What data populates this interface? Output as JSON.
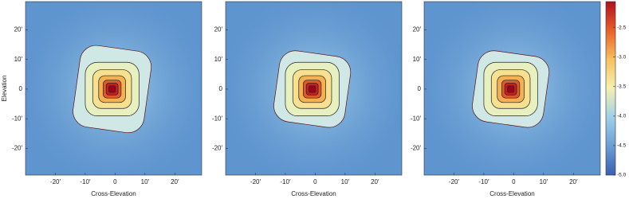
{
  "chart_data": [
    {
      "type": "heatmap",
      "xlabel": "Cross-Elevation",
      "ylabel": "Elevation",
      "xlim": [
        -30,
        29
      ],
      "ylim": [
        -29,
        29.5
      ],
      "xticks": [
        {
          "value": -20,
          "label": "-20′"
        },
        {
          "value": -10,
          "label": "-10′"
        },
        0,
        {
          "value": 10,
          "label": "10′"
        },
        {
          "value": 20,
          "label": "20′"
        }
      ],
      "yticks": [
        {
          "value": 20,
          "label": "20′"
        },
        {
          "value": 10,
          "label": "10′"
        },
        0,
        {
          "value": -10,
          "label": "-10′"
        },
        {
          "value": -20,
          "label": "-20′"
        }
      ]
    },
    {
      "type": "heatmap",
      "xlabel": "Cross-Elevation",
      "xlim": [
        -30,
        29
      ],
      "ylim": [
        -29,
        29.5
      ],
      "xticks": [
        {
          "value": -20,
          "label": "-20′"
        },
        {
          "value": -10,
          "label": "-10′"
        },
        0,
        {
          "value": 10,
          "label": "10′"
        },
        {
          "value": 20,
          "label": "20′"
        }
      ],
      "yticks": [
        {
          "value": 20,
          "label": "20′"
        },
        {
          "value": 10,
          "label": "10′"
        },
        0,
        {
          "value": -10,
          "label": "-10′"
        },
        {
          "value": -20,
          "label": "-20′"
        }
      ]
    },
    {
      "type": "heatmap",
      "xlabel": "Cross-Elevation",
      "xlim": [
        -30,
        29
      ],
      "ylim": [
        -29,
        29.5
      ],
      "xticks": [
        {
          "value": -20,
          "label": "-20′"
        },
        {
          "value": -10,
          "label": "-10′"
        },
        0,
        {
          "value": 10,
          "label": "10′"
        },
        {
          "value": 20,
          "label": "20′"
        }
      ],
      "yticks": [
        {
          "value": 20,
          "label": "20′"
        },
        {
          "value": 10,
          "label": "10′"
        },
        0,
        {
          "value": -10,
          "label": "-10′"
        },
        {
          "value": -20,
          "label": "-20′"
        }
      ]
    },
    {
      "type": "colorbar",
      "clim": [
        -5.0,
        -2.06
      ],
      "colors": [
        "#3a5fb0",
        "#6a9fd4",
        "#9fd0e8",
        "#f5f0b0",
        "#f7c060",
        "#e8602a",
        "#b01020"
      ],
      "ticks": [
        -2.5,
        {
          "value": -3,
          "label": "-3.0"
        },
        -3.5,
        {
          "value": -4,
          "label": "-4.0"
        },
        -4.5,
        {
          "value": -5,
          "label": "-5.0"
        }
      ]
    }
  ]
}
